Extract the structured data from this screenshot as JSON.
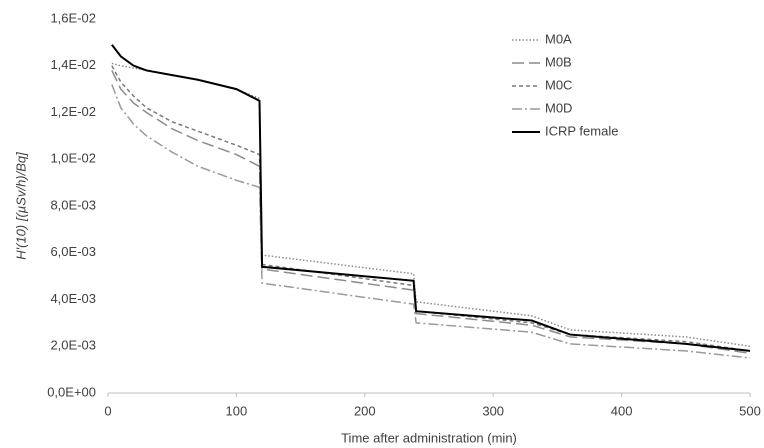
{
  "chart_data": {
    "type": "line",
    "x_label": "Time after administration (min)",
    "y_label": "H'(10) [(µSv/h)/Bq]",
    "x": [
      3,
      10,
      20,
      30,
      50,
      70,
      100,
      118,
      120,
      238,
      240,
      330,
      360,
      450,
      500
    ],
    "series": [
      {
        "name": "M0A",
        "color": "#8c8c8c",
        "dash": "dotted",
        "values": [
          0.0141,
          0.014,
          0.0139,
          0.0138,
          0.0136,
          0.0134,
          0.013,
          0.0126,
          0.0059,
          0.0051,
          0.0039,
          0.0033,
          0.0027,
          0.0024,
          0.002
        ]
      },
      {
        "name": "M0B",
        "color": "#8c8c8c",
        "dash": "long-dash",
        "values": [
          0.0138,
          0.013,
          0.0124,
          0.012,
          0.0113,
          0.0108,
          0.0102,
          0.0097,
          0.0053,
          0.0044,
          0.0034,
          0.0029,
          0.0024,
          0.0021,
          0.0017
        ]
      },
      {
        "name": "M0C",
        "color": "#7a7a7a",
        "dash": "dash",
        "values": [
          0.014,
          0.0133,
          0.0127,
          0.0122,
          0.0116,
          0.0112,
          0.0106,
          0.0102,
          0.0055,
          0.0046,
          0.0035,
          0.003,
          0.0025,
          0.0022,
          0.0018
        ]
      },
      {
        "name": "M0D",
        "color": "#9a9a9a",
        "dash": "dash-dot",
        "values": [
          0.0132,
          0.0122,
          0.0115,
          0.011,
          0.0103,
          0.0097,
          0.0091,
          0.0088,
          0.0047,
          0.0038,
          0.003,
          0.0026,
          0.0021,
          0.0018,
          0.0015
        ]
      },
      {
        "name": "ICRP female",
        "color": "#000000",
        "dash": "solid",
        "values": [
          0.0149,
          0.0144,
          0.014,
          0.0138,
          0.0136,
          0.0134,
          0.013,
          0.0125,
          0.0054,
          0.0048,
          0.0035,
          0.0031,
          0.0025,
          0.0021,
          0.0018
        ]
      }
    ],
    "xlim": [
      0,
      500
    ],
    "xticks": [
      0,
      100,
      200,
      300,
      400,
      500
    ],
    "ylim": [
      0,
      0.016
    ],
    "yticks": [
      {
        "value": 0,
        "label": "0,0E+00"
      },
      {
        "value": 0.002,
        "label": "2,0E-03"
      },
      {
        "value": 0.004,
        "label": "4,0E-03"
      },
      {
        "value": 0.006,
        "label": "6,0E-03"
      },
      {
        "value": 0.008,
        "label": "8,0E-03"
      },
      {
        "value": 0.01,
        "label": "1,0E-02"
      },
      {
        "value": 0.012,
        "label": "1,2E-02"
      },
      {
        "value": 0.014,
        "label": "1,4E-02"
      },
      {
        "value": 0.016,
        "label": "1,6E-02"
      }
    ],
    "grid": false,
    "legend": "upper right"
  }
}
